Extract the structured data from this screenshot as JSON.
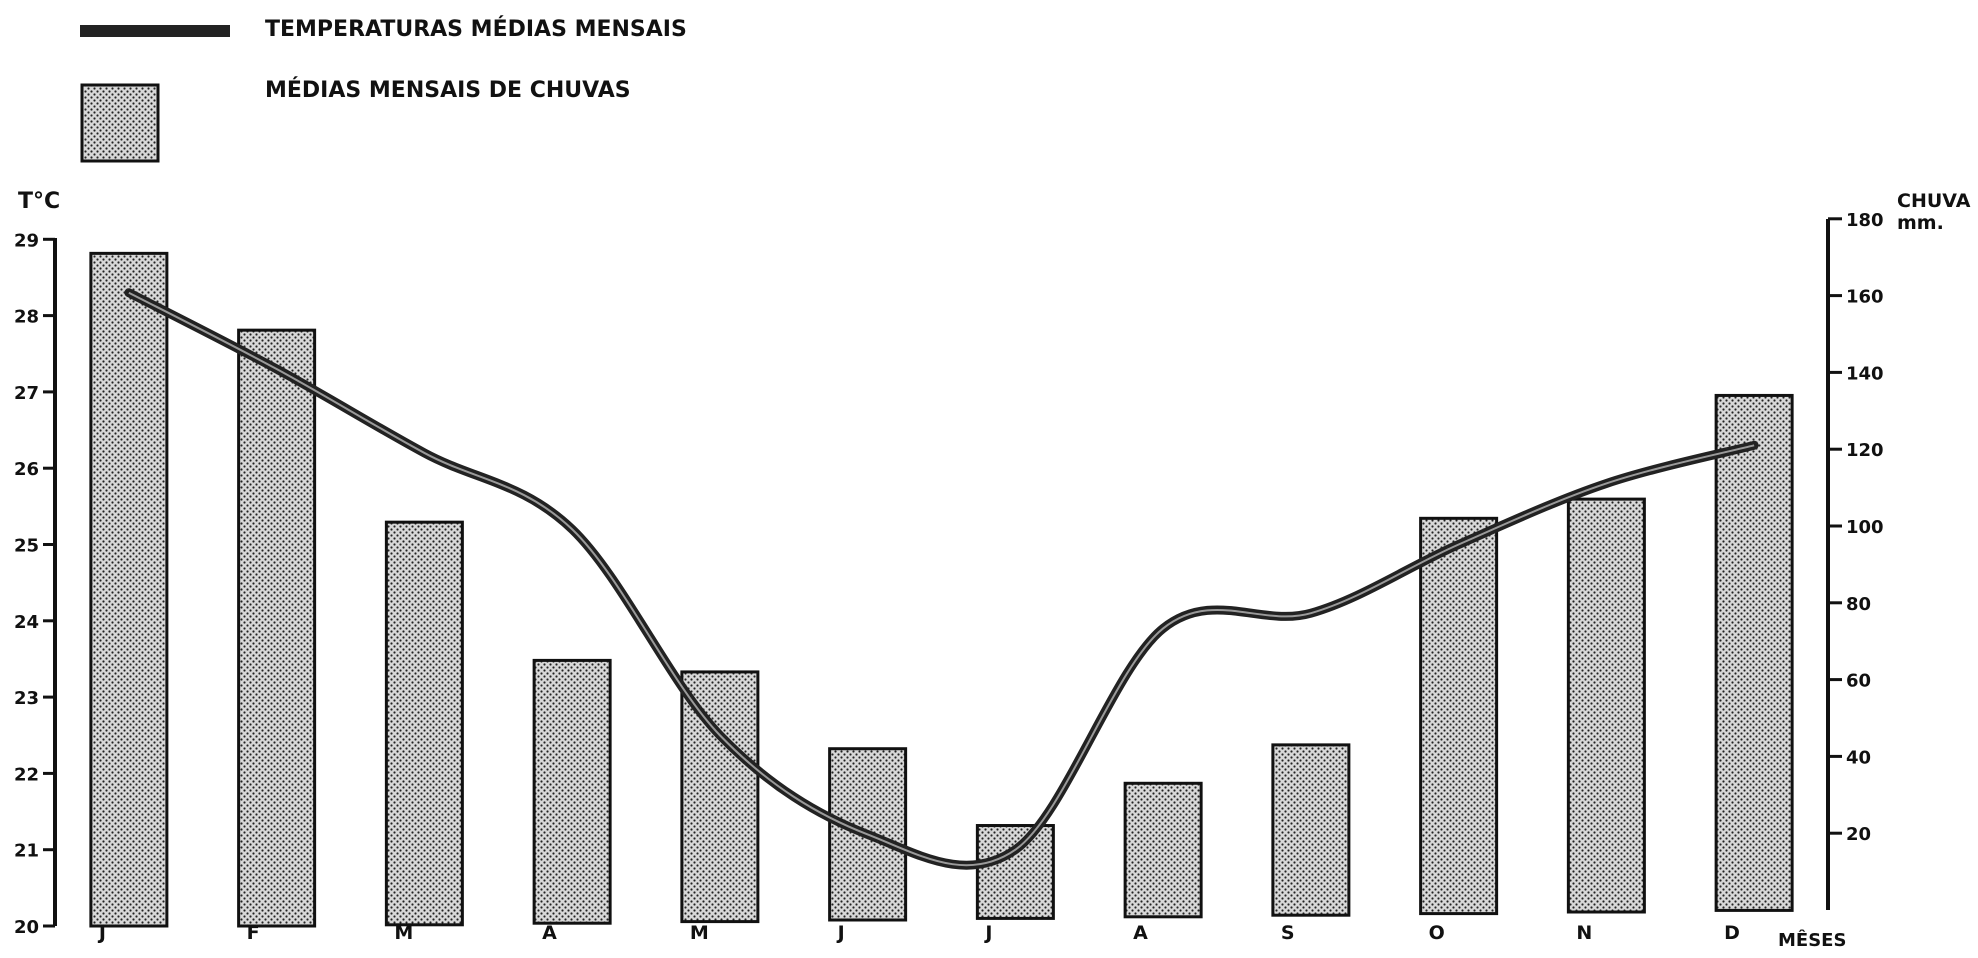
{
  "legend": {
    "temperature_label": "TEMPERATURAS MÉDIAS MENSAIS",
    "rainfall_label": "MÉDIAS  MENSAIS DE CHUVAS"
  },
  "axes": {
    "left_title": "T°C",
    "right_title_line1": "CHUVA",
    "right_title_line2": "mm.",
    "x_title": "MÊSES"
  },
  "chart_data": {
    "type": "bar",
    "title": "",
    "xlabel": "MÊSES",
    "ylabel": "T°C",
    "y2label": "CHUVA mm.",
    "categories": [
      "J",
      "F",
      "M",
      "A",
      "M",
      "J",
      "J",
      "A",
      "S",
      "O",
      "N",
      "D"
    ],
    "series": [
      {
        "name": "MÉDIAS  MENSAIS DE CHUVAS",
        "type": "bar",
        "axis": "right",
        "values": [
          171,
          151,
          101,
          65,
          62,
          42,
          22,
          33,
          43,
          102,
          107,
          134
        ]
      },
      {
        "name": "TEMPERATURAS MÉDIAS MENSAIS",
        "type": "line",
        "axis": "left",
        "values": [
          28.3,
          27.3,
          26.2,
          25.2,
          22.5,
          21.2,
          21.0,
          23.9,
          24.1,
          25.0,
          25.8,
          26.3
        ]
      }
    ],
    "y_left": {
      "min": 20,
      "max": 29,
      "ticks": [
        20,
        21,
        22,
        23,
        24,
        25,
        26,
        27,
        28,
        29
      ]
    },
    "y_right": {
      "min": 0,
      "max": 180,
      "ticks": [
        20,
        40,
        60,
        80,
        100,
        120,
        140,
        160,
        180
      ]
    },
    "grid": false,
    "legend_position": "top-left",
    "colors": {
      "bar_fill": "#bdbdbd",
      "bar_stroke": "#111111",
      "line": "#222222"
    }
  }
}
